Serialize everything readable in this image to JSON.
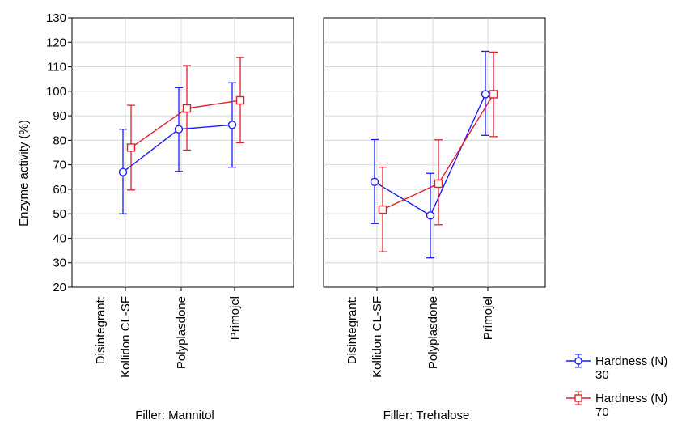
{
  "chart_data": {
    "type": "line",
    "ylabel": "Enzyme activity (%)",
    "ylim": [
      20,
      130
    ],
    "yticks": [
      20,
      30,
      40,
      50,
      60,
      70,
      80,
      90,
      100,
      110,
      120,
      130
    ],
    "grid": true,
    "x_factor_label": "Disintegrant:",
    "categories": [
      "Kollidon CL-SF",
      "Polyplasdone",
      "Primojel"
    ],
    "panels": [
      {
        "label": "Filler: Mannitol",
        "series": [
          {
            "name": "Hardness (N) 30",
            "color": "#1a1aff",
            "marker": "circle",
            "values": [
              67,
              84.5,
              86.3
            ],
            "lower": [
              50,
              67.3,
              69
            ],
            "upper": [
              84.5,
              101.5,
              103.5
            ]
          },
          {
            "name": "Hardness (N) 70",
            "color": "#e0202a",
            "marker": "square",
            "values": [
              77,
              93,
              96.3
            ],
            "lower": [
              59.7,
              76,
              79
            ],
            "upper": [
              94.3,
              110.5,
              113.8
            ]
          }
        ]
      },
      {
        "label": "Filler: Trehalose",
        "series": [
          {
            "name": "Hardness (N) 30",
            "color": "#1a1aff",
            "marker": "circle",
            "values": [
              63,
              49.3,
              98.8
            ],
            "lower": [
              46,
              32,
              82
            ],
            "upper": [
              80.3,
              66.5,
              116.3
            ]
          },
          {
            "name": "Hardness (N) 70",
            "color": "#e0202a",
            "marker": "square",
            "values": [
              51.7,
              62.3,
              98.8
            ],
            "lower": [
              34.5,
              45.5,
              81.5
            ],
            "upper": [
              69,
              80.2,
              116
            ]
          }
        ]
      }
    ],
    "legend": {
      "placement": "bottom-right",
      "entries": [
        {
          "line1": "Hardness (N)",
          "line2": "30",
          "color": "#1a1aff",
          "marker": "circle"
        },
        {
          "line1": "Hardness (N)",
          "line2": "70",
          "color": "#e0202a",
          "marker": "square"
        }
      ]
    }
  }
}
